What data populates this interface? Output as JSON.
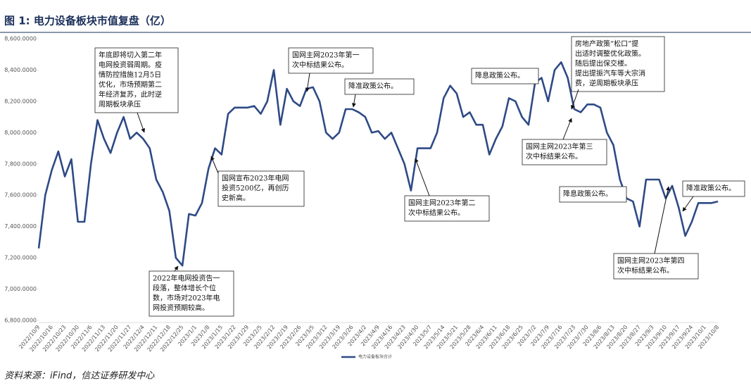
{
  "chart_data": {
    "type": "line",
    "title": "图 1:  电力设备板块市值复盘（亿）",
    "source": "资料来源：iFind，信达证券研发中心",
    "categories": [
      "2022/10/9",
      null,
      "2022/10/16",
      null,
      "2022/10/23",
      null,
      "2022/10/30",
      null,
      "2022/11/6",
      null,
      "2022/11/13",
      null,
      "2022/11/20",
      null,
      "2022/11/27",
      null,
      "2022/12/4",
      null,
      "2022/12/11",
      null,
      "2022/12/18",
      null,
      "2022/12/25",
      null,
      "2023/1/1",
      null,
      "2023/1/8",
      null,
      "2023/1/15",
      null,
      "2023/1/22",
      null,
      "2023/1/29",
      null,
      "2023/2/5",
      null,
      "2023/2/12",
      null,
      "2023/2/19",
      null,
      "2023/2/26",
      null,
      "2023/3/5",
      null,
      "2023/3/12",
      null,
      "2023/3/19",
      null,
      "2023/3/26",
      null,
      "2023/4/2",
      null,
      "2023/4/9",
      null,
      "2023/4/16",
      null,
      "2023/4/23",
      null,
      "2023/4/30",
      null,
      "2023/5/7",
      null,
      "2023/5/14",
      null,
      "2023/5/21",
      null,
      "2023/5/28",
      null,
      "2023/6/4",
      null,
      "2023/6/11",
      null,
      "2023/6/18",
      null,
      "2023/6/25",
      null,
      "2023/7/2",
      null,
      "2023/7/9",
      null,
      "2023/7/16",
      null,
      "2023/7/23",
      null,
      "2023/7/30",
      null,
      "2023/8/6",
      null,
      "2023/8/13",
      null,
      "2023/8/20",
      null,
      "2023/8/27",
      null,
      "2023/9/3",
      null,
      "2023/9/10",
      null,
      "2023/9/17",
      null,
      "2023/9/24",
      null,
      "2023/10/1",
      null,
      "2023/10/8"
    ],
    "series": [
      {
        "name": "电力设备板块合计",
        "color": "#2e4a86",
        "values": [
          7260,
          7600,
          7760,
          7880,
          7720,
          7830,
          7430,
          7430,
          7800,
          8080,
          7960,
          7870,
          8000,
          8100,
          7960,
          8000,
          7960,
          7900,
          7700,
          7620,
          7500,
          7200,
          7150,
          7480,
          7470,
          7550,
          7770,
          7900,
          7860,
          8120,
          8160,
          8160,
          8160,
          8170,
          8120,
          8200,
          8400,
          8050,
          8280,
          8200,
          8170,
          8280,
          8290,
          8200,
          8000,
          7960,
          8000,
          8150,
          8150,
          8130,
          8100,
          8000,
          8010,
          7960,
          8000,
          7900,
          7800,
          7630,
          7900,
          7900,
          7900,
          8000,
          8220,
          8300,
          8250,
          8100,
          8130,
          8050,
          8050,
          7860,
          7960,
          8040,
          8220,
          8200,
          8100,
          8050,
          8320,
          8350,
          8200,
          8400,
          8450,
          8350,
          8150,
          8130,
          8180,
          8180,
          8160,
          8000,
          7920,
          7700,
          7580,
          7560,
          7400,
          7700,
          7700,
          7700,
          7580,
          7660,
          7520,
          7340,
          7430,
          7550,
          7550,
          7550,
          7560
        ]
      }
    ],
    "ylim": [
      6800,
      8600
    ],
    "yticks": [
      {
        "value": 6800,
        "label": "6,800.0000"
      },
      {
        "value": 7000,
        "label": "7,000.0000"
      },
      {
        "value": 7200,
        "label": "7,200.0000"
      },
      {
        "value": 7400,
        "label": "7,400.0000"
      },
      {
        "value": 7600,
        "label": "7,600.0000"
      },
      {
        "value": 7800,
        "label": "7,800.0000"
      },
      {
        "value": 8000,
        "label": "8,000.0000"
      },
      {
        "value": 8200,
        "label": "8,200.0000"
      },
      {
        "value": 8400,
        "label": "8,400.0000"
      },
      {
        "value": 8600,
        "label": "8,600.0000"
      }
    ],
    "legend": "bottom",
    "annotations": [
      {
        "text": [
          "年底即将切入第二年",
          "电网投资弱周期。疫",
          "情防控措施12月5日",
          "优化，市场预期第二",
          "年经济复苏，此时逆",
          "周期板块承压"
        ]
      },
      {
        "text": [
          "2022年电网投资告一",
          "段落，整体增长个位",
          "数，市场对2023年电",
          "网投资预期较高。"
        ]
      },
      {
        "text": [
          "国网主网2023年第一",
          "次中标结果公布。"
        ]
      },
      {
        "text": [
          "降准政策公布。"
        ]
      },
      {
        "text": [
          "国网宣布2023年电网",
          "投资5200亿，再创历",
          "史新高。"
        ]
      },
      {
        "text": [
          "国网主网2023年第二",
          "次中标结果公布。"
        ]
      },
      {
        "text": [
          "降息政策公布。"
        ]
      },
      {
        "text": [
          "房地产政策“松口”提",
          "出适时调整优化政策。",
          "随后提出保交楼。",
          "提出提振汽车等大宗消",
          "费，逆周期板块承压"
        ]
      },
      {
        "text": [
          "国网主网2023年第三",
          "次中标结果公布。"
        ]
      },
      {
        "text": [
          "降息政策公布。"
        ]
      },
      {
        "text": [
          "国网主网2023年第四",
          "次中标结果公布。"
        ]
      },
      {
        "text": [
          "降准政策公布。"
        ]
      }
    ]
  }
}
